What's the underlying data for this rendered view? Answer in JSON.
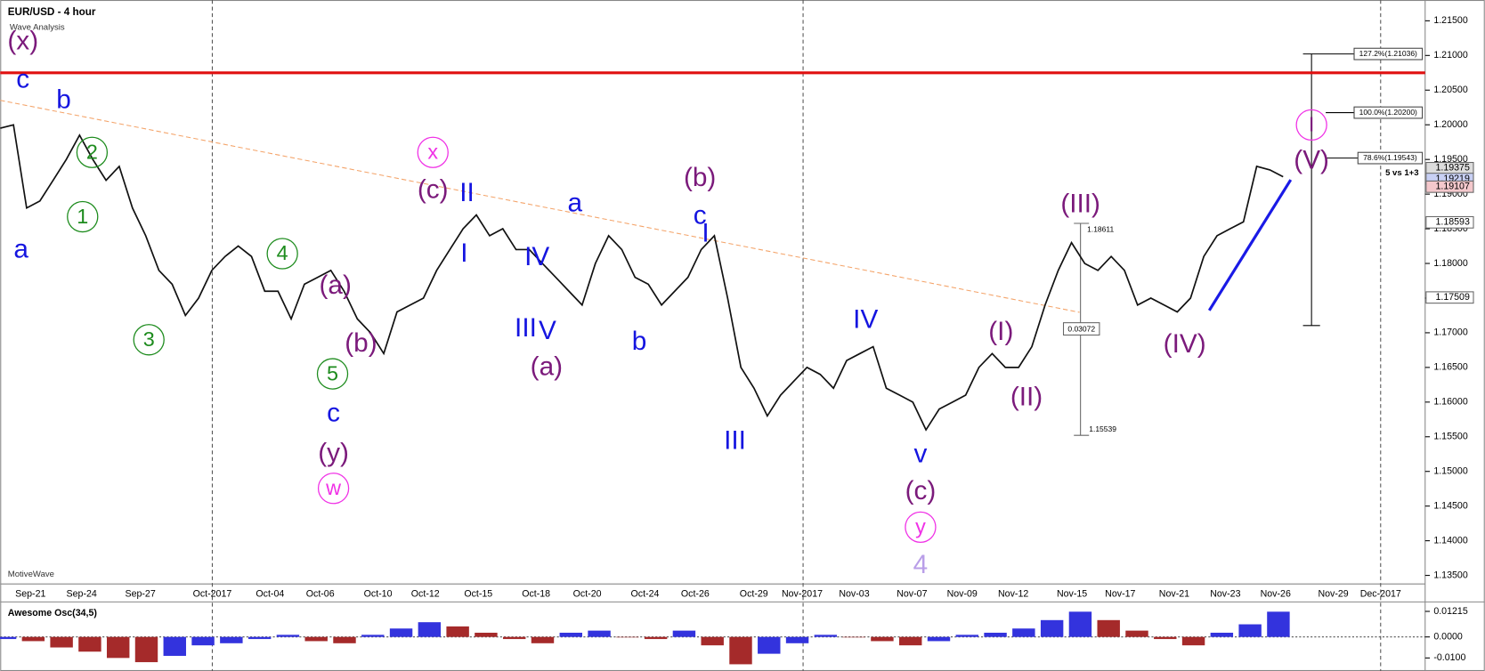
{
  "chart_data": [
    {
      "type": "line",
      "title": "EUR/USD - 4 hour",
      "subtitle": "Wave Analysis",
      "watermark": "MotiveWave",
      "color": "#111111",
      "ylim": [
        1.13377,
        1.218
      ],
      "yticks": [
        {
          "value": 1.215,
          "label": "1.21500"
        },
        {
          "value": 1.21,
          "label": "1.21000"
        },
        {
          "value": 1.205,
          "label": "1.20500"
        },
        {
          "value": 1.2,
          "label": "1.20000"
        },
        {
          "value": 1.195,
          "label": "1.19500"
        },
        {
          "value": 1.19,
          "label": "1.19000"
        },
        {
          "value": 1.185,
          "label": "1.18500"
        },
        {
          "value": 1.18,
          "label": "1.18000"
        },
        {
          "value": 1.175,
          "label": "1.17500"
        },
        {
          "value": 1.17,
          "label": "1.17000"
        },
        {
          "value": 1.165,
          "label": "1.16500"
        },
        {
          "value": 1.16,
          "label": "1.16000"
        },
        {
          "value": 1.155,
          "label": "1.15500"
        },
        {
          "value": 1.15,
          "label": "1.15000"
        },
        {
          "value": 1.145,
          "label": "1.14500"
        },
        {
          "value": 1.14,
          "label": "1.14000"
        },
        {
          "value": 1.135,
          "label": "1.13500"
        }
      ],
      "xtick_labels": [
        "Sep-21",
        "Sep-24",
        "Sep-27",
        "Oct-2017",
        "Oct-04",
        "Oct-06",
        "Oct-10",
        "Oct-12",
        "Oct-15",
        "Oct-18",
        "Oct-20",
        "Oct-24",
        "Oct-26",
        "Oct-29",
        "Nov-2017",
        "Nov-03",
        "Nov-07",
        "Nov-09",
        "Nov-12",
        "Nov-15",
        "Nov-17",
        "Nov-21",
        "Nov-23",
        "Nov-26",
        "Nov-29",
        "Dec-2017"
      ],
      "price_markers": [
        1.19375,
        1.19219,
        1.19107,
        1.18593,
        1.17509
      ],
      "resistance": 1.2075,
      "fib_labels": [
        "127.2%(1.21036)",
        "100.0%(1.20200)",
        "78.6%(1.19543)"
      ],
      "note": "5 vs 1+3",
      "measure_labels": [
        "0.03072",
        "1.18611",
        "1.15539"
      ],
      "wave_labels": [
        "(x)",
        "c",
        "a",
        "b",
        "2",
        "1",
        "3",
        "4",
        "5",
        "(a)",
        "(b)",
        "c",
        "(y)",
        "w",
        "x",
        "(c)",
        "II",
        "I",
        "IV",
        "III",
        "V",
        "(a)",
        "a",
        "b",
        "(b)",
        "c",
        "I",
        "III",
        "IV",
        "v",
        "(c)",
        "y",
        "4",
        "(I)",
        "(II)",
        "(III)",
        "(IV)",
        "I",
        "(V)"
      ],
      "values": [
        1.1995,
        1.2,
        1.188,
        1.189,
        1.192,
        1.195,
        1.1985,
        1.195,
        1.192,
        1.194,
        1.188,
        1.184,
        1.179,
        1.177,
        1.1725,
        1.175,
        1.179,
        1.181,
        1.1825,
        1.181,
        1.176,
        1.176,
        1.172,
        1.177,
        1.178,
        1.179,
        1.176,
        1.172,
        1.17,
        1.167,
        1.173,
        1.174,
        1.175,
        1.179,
        1.182,
        1.185,
        1.187,
        1.184,
        1.185,
        1.182,
        1.182,
        1.18,
        1.178,
        1.176,
        1.174,
        1.18,
        1.184,
        1.182,
        1.178,
        1.177,
        1.174,
        1.176,
        1.178,
        1.182,
        1.184,
        1.175,
        1.165,
        1.162,
        1.158,
        1.161,
        1.163,
        1.165,
        1.164,
        1.162,
        1.166,
        1.167,
        1.168,
        1.162,
        1.161,
        1.16,
        1.156,
        1.159,
        1.16,
        1.161,
        1.165,
        1.167,
        1.165,
        1.165,
        1.168,
        1.174,
        1.179,
        1.183,
        1.18,
        1.179,
        1.181,
        1.179,
        1.174,
        1.175,
        1.174,
        1.173,
        1.175,
        1.181,
        1.184,
        1.185,
        1.186,
        1.194,
        1.1935,
        1.1925
      ]
    },
    {
      "type": "bar",
      "title": "Awesome Osc(34,5)",
      "ylim": [
        -0.0162,
        0.0162
      ],
      "yticks": [
        0.01215,
        {
          "value": 0,
          "label": "0.0000"
        },
        {
          "value": -0.01,
          "label": "-0.0100"
        }
      ],
      "values": [
        -0.001,
        -0.002,
        -0.005,
        -0.007,
        -0.01,
        -0.012,
        -0.009,
        -0.004,
        -0.003,
        -0.001,
        0.001,
        -0.002,
        -0.003,
        0.001,
        0.004,
        0.007,
        0.005,
        0.002,
        -0.001,
        -0.003,
        0.002,
        0.003,
        0.0,
        -0.001,
        0.003,
        -0.004,
        -0.013,
        -0.008,
        -0.003,
        0.001,
        0.0,
        -0.002,
        -0.004,
        -0.002,
        0.001,
        0.002,
        0.004,
        0.008,
        0.012,
        0.008,
        0.003,
        -0.001,
        -0.004,
        0.002,
        0.006,
        0.012
      ]
    }
  ]
}
